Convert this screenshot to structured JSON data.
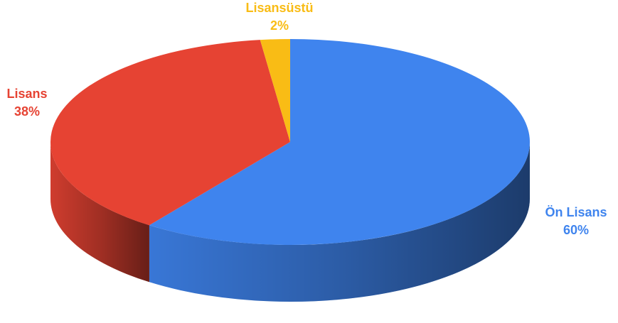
{
  "chart_data": {
    "type": "pie",
    "categories": [
      "Ön Lisans",
      "Lisans",
      "Lisansüstü"
    ],
    "values": [
      60,
      38,
      2
    ],
    "value_labels": [
      "60%",
      "38%",
      "2%"
    ],
    "colors": [
      "#3f84ee",
      "#e64333",
      "#f9bc15"
    ]
  }
}
